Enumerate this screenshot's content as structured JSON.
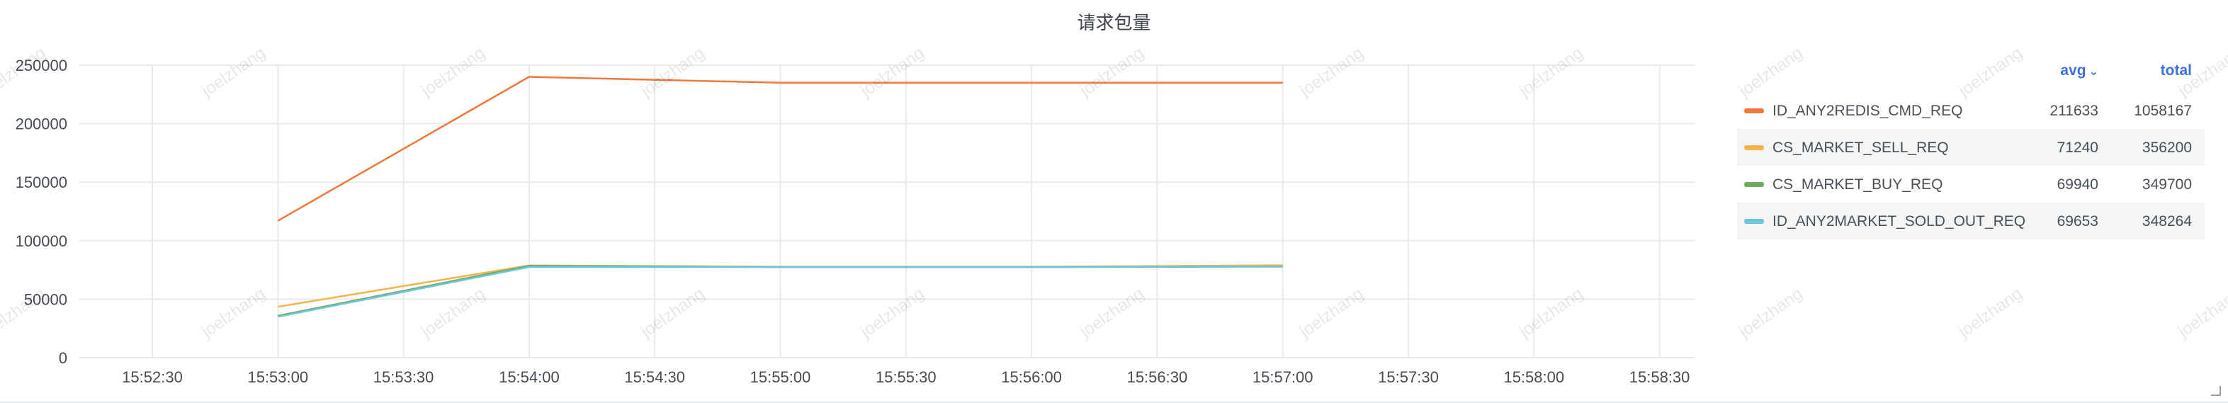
{
  "panel": {
    "title": "请求包量"
  },
  "watermark": "joelzhang",
  "legend": {
    "avg_header": "avg",
    "total_header": "total",
    "sort_icon": "chevron-down-icon",
    "rows": [
      {
        "name": "ID_ANY2REDIS_CMD_REQ",
        "avg": "211633",
        "total": "1058167",
        "color": "#f2773a"
      },
      {
        "name": "CS_MARKET_SELL_REQ",
        "avg": "71240",
        "total": "356200",
        "color": "#f6b44f"
      },
      {
        "name": "CS_MARKET_BUY_REQ",
        "avg": "69940",
        "total": "349700",
        "color": "#6fab5e"
      },
      {
        "name": "ID_ANY2MARKET_SOLD_OUT_REQ",
        "avg": "69653",
        "total": "348264",
        "color": "#6ec6de"
      }
    ]
  },
  "chart_data": {
    "type": "line",
    "title": "请求包量",
    "xlabel": "",
    "ylabel": "",
    "ylim": [
      0,
      250000
    ],
    "y_ticks": [
      "0",
      "50000",
      "100000",
      "150000",
      "200000",
      "250000"
    ],
    "y_tick_values": [
      0,
      50000,
      100000,
      150000,
      200000,
      250000
    ],
    "x_ticks": [
      "15:52:30",
      "15:53:00",
      "15:53:30",
      "15:54:00",
      "15:54:30",
      "15:55:00",
      "15:55:30",
      "15:56:00",
      "15:56:30",
      "15:57:00",
      "15:57:30",
      "15:58:00",
      "15:58:30"
    ],
    "x": [
      "15:53:00",
      "15:54:00",
      "15:55:00",
      "15:56:00",
      "15:57:00"
    ],
    "grid": true,
    "legend_position": "right",
    "series": [
      {
        "name": "ID_ANY2REDIS_CMD_REQ",
        "color": "#f2773a",
        "values": [
          117000,
          240000,
          235000,
          235000,
          235000
        ]
      },
      {
        "name": "CS_MARKET_SELL_REQ",
        "color": "#f6b44f",
        "values": [
          43500,
          78800,
          77700,
          77700,
          79000
        ]
      },
      {
        "name": "CS_MARKET_BUY_REQ",
        "color": "#6fab5e",
        "values": [
          35800,
          78500,
          77400,
          77400,
          77800
        ]
      },
      {
        "name": "ID_ANY2MARKET_SOLD_OUT_REQ",
        "color": "#6ec6de",
        "values": [
          35000,
          77500,
          77500,
          77500,
          78000
        ]
      }
    ]
  }
}
